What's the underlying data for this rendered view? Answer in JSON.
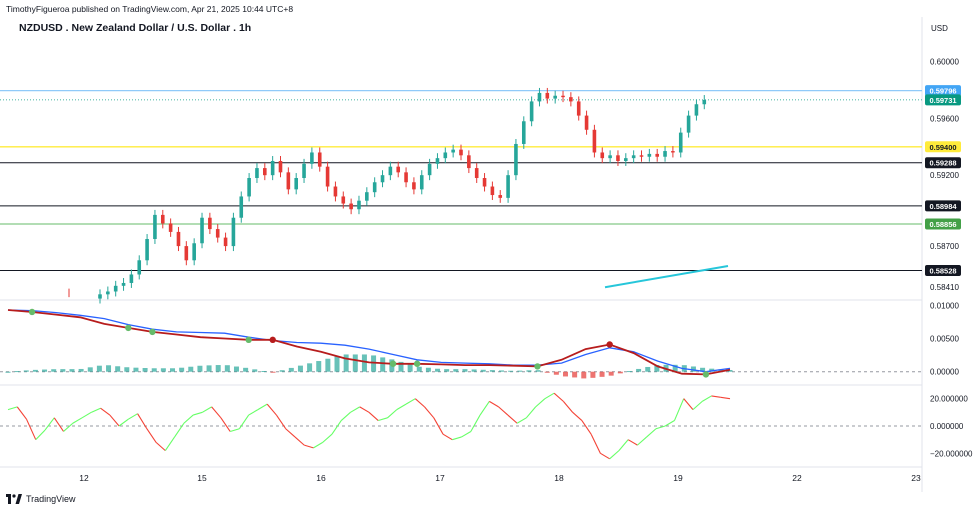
{
  "header": {
    "published": "TimothyFigueroa published on TradingView.com, Apr 21, 2025 10:44 UTC+8",
    "title": "NZDUSD . New Zealand Dollar / U.S. Dollar . 1h",
    "currency": "USD"
  },
  "logo": {
    "text": "TradingView",
    "icon": "tradingview-logo-icon"
  },
  "colors": {
    "up": "#26a69a",
    "down": "#e53935",
    "blue_line": "#90caf9",
    "teal_label": "#089981",
    "yellow_line": "#ffeb3b",
    "green_line": "#66bb6a",
    "trend": "#26c6da",
    "macd_fast": "#2962ff",
    "macd_slow": "#b71c1c",
    "osc_up": "#66ff66",
    "osc_down": "#f44336"
  },
  "chart_data": [
    {
      "type": "candlestick",
      "title": "NZDUSD . New Zealand Dollar / U.S. Dollar . 1h",
      "y_axis_label": "USD",
      "ylim": [
        0.5832,
        0.6016
      ],
      "x_tick_labels": [
        "12",
        "15",
        "16",
        "17",
        "18",
        "19",
        "22",
        "23"
      ],
      "y_tick_labels": [
        "0.60000",
        "0.59600",
        "0.59200",
        "0.58700",
        "0.58410"
      ],
      "price_labels": [
        {
          "value": 0.59796,
          "text": "0.59796",
          "style": "blue"
        },
        {
          "value": 0.59731,
          "text": "0.59731",
          "style": "teal"
        },
        {
          "value": 0.594,
          "text": "0.59400",
          "style": "yellow"
        },
        {
          "value": 0.59288,
          "text": "0.59288",
          "style": "black"
        },
        {
          "value": 0.58984,
          "text": "0.58984",
          "style": "black"
        },
        {
          "value": 0.58856,
          "text": "0.58856",
          "style": "green"
        },
        {
          "value": 0.58528,
          "text": "0.58528",
          "style": "black"
        }
      ],
      "horizontal_lines": [
        {
          "value": 0.59796,
          "style": "blue"
        },
        {
          "value": 0.59731,
          "style": "teal-dotted"
        },
        {
          "value": 0.594,
          "style": "yellow"
        },
        {
          "value": 0.59288,
          "style": "black"
        },
        {
          "value": 0.58984,
          "style": "black"
        },
        {
          "value": 0.58856,
          "style": "green"
        },
        {
          "value": 0.58528,
          "style": "black"
        }
      ],
      "trendline": {
        "from": {
          "x": "18 18:00",
          "y": 0.5841
        },
        "to": {
          "x": "19 06:00",
          "y": 0.5856
        }
      },
      "candles_note": "approximate hourly OHLC read from chart",
      "close_path": [
        0.5836,
        0.5838,
        0.5842,
        0.5844,
        0.585,
        0.586,
        0.5875,
        0.5892,
        0.5886,
        0.588,
        0.587,
        0.586,
        0.5872,
        0.589,
        0.5882,
        0.5876,
        0.587,
        0.589,
        0.5905,
        0.5918,
        0.5925,
        0.592,
        0.593,
        0.5922,
        0.591,
        0.5918,
        0.5928,
        0.5936,
        0.5926,
        0.5912,
        0.5905,
        0.59,
        0.5896,
        0.5902,
        0.5908,
        0.5915,
        0.592,
        0.5926,
        0.5922,
        0.5915,
        0.591,
        0.592,
        0.5928,
        0.5932,
        0.5936,
        0.5938,
        0.5934,
        0.5925,
        0.5918,
        0.5912,
        0.5906,
        0.5904,
        0.592,
        0.5942,
        0.5958,
        0.5972,
        0.5978,
        0.5974,
        0.5976,
        0.5975,
        0.5972,
        0.5962,
        0.5952,
        0.5936,
        0.5932,
        0.5934,
        0.593,
        0.5932,
        0.5934,
        0.5933,
        0.5935,
        0.5933,
        0.5937,
        0.5936,
        0.595,
        0.5962,
        0.597,
        0.5973
      ]
    },
    {
      "type": "line",
      "name": "MACD",
      "ylim": [
        -0.002,
        0.0108
      ],
      "y_tick_labels": [
        "0.01000",
        "0.00500",
        "0.00000"
      ],
      "series": [
        {
          "name": "fast",
          "values": [
            0.0093,
            0.0092,
            0.0089,
            0.0085,
            0.008,
            0.0071,
            0.0064,
            0.006,
            0.0059,
            0.0058,
            0.0052,
            0.0047,
            0.0044,
            0.0043,
            0.004,
            0.0034,
            0.0026,
            0.0018,
            0.0014,
            0.0013,
            0.0012,
            0.001,
            0.001,
            0.0013,
            0.0026,
            0.0036,
            0.003,
            0.0016,
            0.0005,
            0.0,
            0.0005
          ]
        },
        {
          "name": "slow",
          "values": [
            0.0093,
            0.009,
            0.0086,
            0.0082,
            0.0072,
            0.0066,
            0.006,
            0.0056,
            0.0052,
            0.005,
            0.0048,
            0.0048,
            0.0038,
            0.003,
            0.002,
            0.0014,
            0.0012,
            0.0012,
            0.0011,
            0.001,
            0.001,
            0.0009,
            0.0008,
            0.0018,
            0.0034,
            0.0041,
            0.0028,
            0.0008,
            -0.0003,
            -0.0004,
            0.0003
          ]
        }
      ],
      "cross_points_index": [
        1,
        5,
        6,
        10,
        11,
        16,
        17,
        22,
        25,
        29
      ]
    },
    {
      "type": "line",
      "name": "Oscillator",
      "ylim": [
        -30,
        30
      ],
      "y_tick_labels": [
        "20.000000",
        "0.000000",
        "−20.000000"
      ],
      "values": [
        12,
        14,
        5,
        -10,
        -3,
        6,
        -4,
        2,
        6,
        10,
        13,
        8,
        0,
        5,
        9,
        -2,
        -12,
        -18,
        -8,
        2,
        8,
        10,
        14,
        6,
        -4,
        -2,
        8,
        12,
        16,
        8,
        -2,
        -8,
        -14,
        -16,
        -12,
        -6,
        4,
        10,
        14,
        10,
        4,
        6,
        12,
        16,
        20,
        14,
        6,
        -6,
        -10,
        -8,
        -4,
        8,
        18,
        14,
        8,
        2,
        6,
        14,
        20,
        24,
        18,
        10,
        4,
        -6,
        -20,
        -24,
        -18,
        -10,
        -14,
        -8,
        -2,
        0,
        4,
        20,
        12,
        18,
        22,
        21,
        20
      ]
    }
  ]
}
